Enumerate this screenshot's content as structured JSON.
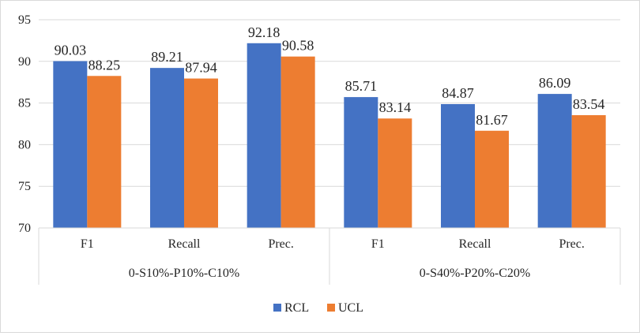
{
  "chart_data": {
    "type": "bar",
    "title": "",
    "xlabel": "",
    "ylabel": "",
    "ylim": [
      70,
      95
    ],
    "yticks": [
      70,
      75,
      80,
      85,
      90,
      95
    ],
    "gridlines": true,
    "legend_position": "bottom",
    "groups": [
      {
        "label": "0-S10%-P10%-C10%",
        "categories": [
          "F1",
          "Recall",
          "Prec."
        ]
      },
      {
        "label": "0-S40%-P20%-C20%",
        "categories": [
          "F1",
          "Recall",
          "Prec."
        ]
      }
    ],
    "series": [
      {
        "name": "RCL",
        "color": "#4472c4",
        "values": [
          90.03,
          89.21,
          92.18,
          85.71,
          84.87,
          86.09
        ],
        "labels": [
          "90.03",
          "89.21",
          "92.18",
          "85.71",
          "84.87",
          "86.09"
        ]
      },
      {
        "name": "UCL",
        "color": "#ed7d31",
        "values": [
          88.25,
          87.94,
          90.58,
          83.14,
          81.67,
          83.54
        ],
        "labels": [
          "88.25",
          "87.94",
          "90.58",
          "83.14",
          "81.67",
          "83.54"
        ]
      }
    ]
  }
}
